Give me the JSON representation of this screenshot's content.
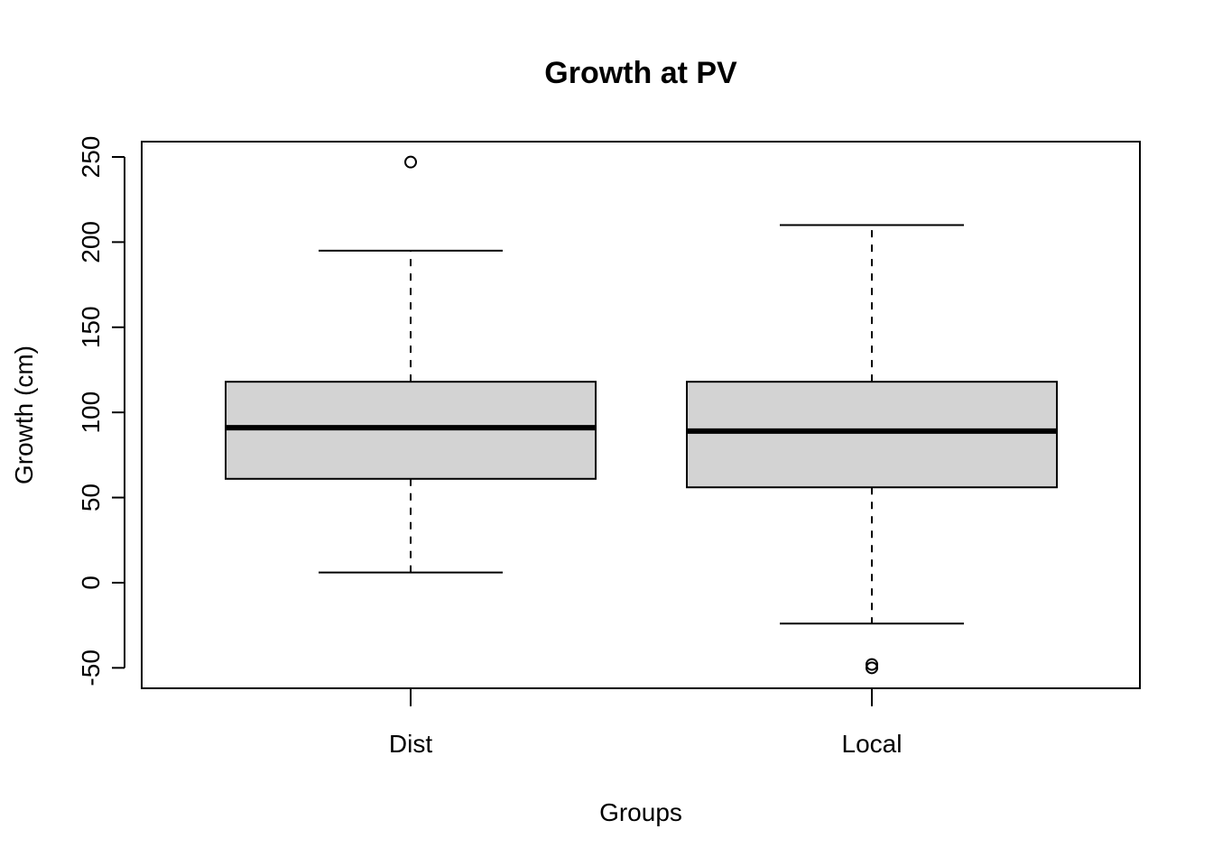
{
  "chart_data": {
    "type": "boxplot",
    "title": "Growth at PV",
    "xlabel": "Groups",
    "ylabel": "Growth (cm)",
    "ylim": [
      -62,
      259
    ],
    "y_ticks": [
      -50,
      0,
      50,
      100,
      150,
      200,
      250
    ],
    "categories": [
      "Dist",
      "Local"
    ],
    "boxes": [
      {
        "category": "Dist",
        "whisker_low": 6,
        "q1": 61,
        "median": 91,
        "q3": 118,
        "whisker_high": 195,
        "outliers": [
          247
        ]
      },
      {
        "category": "Local",
        "whisker_low": -24,
        "q1": 56,
        "median": 89,
        "q3": 118,
        "whisker_high": 210,
        "outliers": [
          -48,
          -50
        ]
      }
    ],
    "box_fill": "#d3d3d3",
    "grid": false
  }
}
